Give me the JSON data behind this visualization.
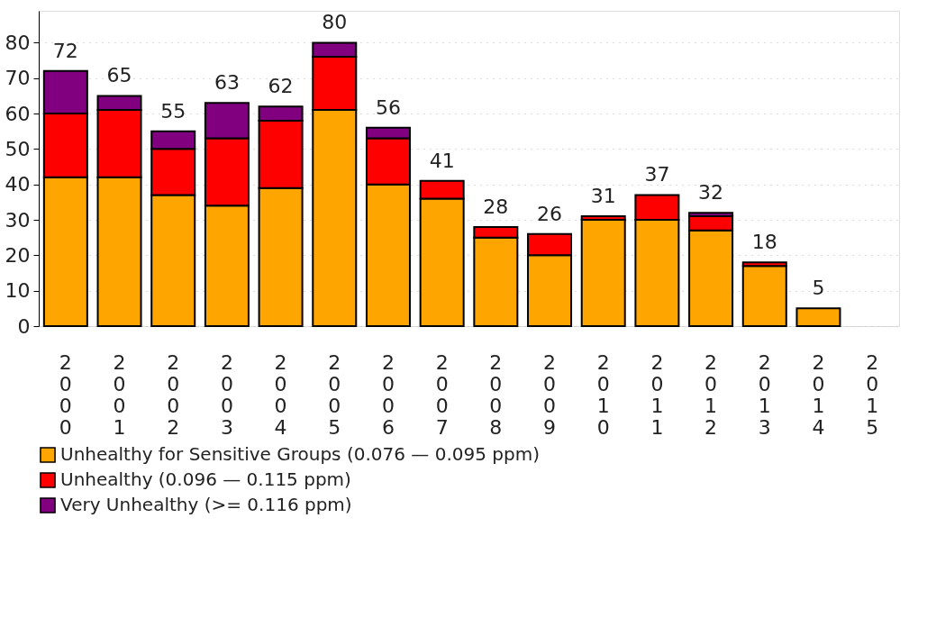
{
  "chart_data": {
    "type": "bar",
    "stacked": true,
    "categories": [
      "2000",
      "2001",
      "2002",
      "2003",
      "2004",
      "2005",
      "2006",
      "2007",
      "2008",
      "2009",
      "2010",
      "2011",
      "2012",
      "2013",
      "2014",
      "2015"
    ],
    "series": [
      {
        "name": "Unhealthy for Sensitive Groups (0.076 — 0.095 ppm)",
        "color": "#ffa500",
        "values": [
          42,
          42,
          37,
          34,
          39,
          61,
          40,
          36,
          25,
          20,
          30,
          30,
          27,
          17,
          5,
          null
        ]
      },
      {
        "name": "Unhealthy (0.096 — 0.115 ppm)",
        "color": "#ff0000",
        "values": [
          18,
          19,
          13,
          19,
          19,
          15,
          13,
          5,
          3,
          6,
          1,
          7,
          4,
          1,
          null,
          null
        ]
      },
      {
        "name": "Very Unhealthy (>= 0.116 ppm)",
        "color": "#800080",
        "values": [
          12,
          4,
          5,
          10,
          4,
          4,
          3,
          null,
          null,
          null,
          null,
          null,
          1,
          null,
          null,
          null
        ]
      }
    ],
    "totals": [
      "72",
      "65",
      "55",
      "63",
      "62",
      "80",
      "56",
      "41",
      "28",
      "26",
      "31",
      "37",
      "32",
      "18",
      "5",
      null
    ],
    "ylim": [
      0,
      89
    ],
    "yticks": [
      0,
      10,
      20,
      30,
      40,
      50,
      60,
      70,
      80
    ],
    "grid": "y",
    "legend": "bottom"
  }
}
